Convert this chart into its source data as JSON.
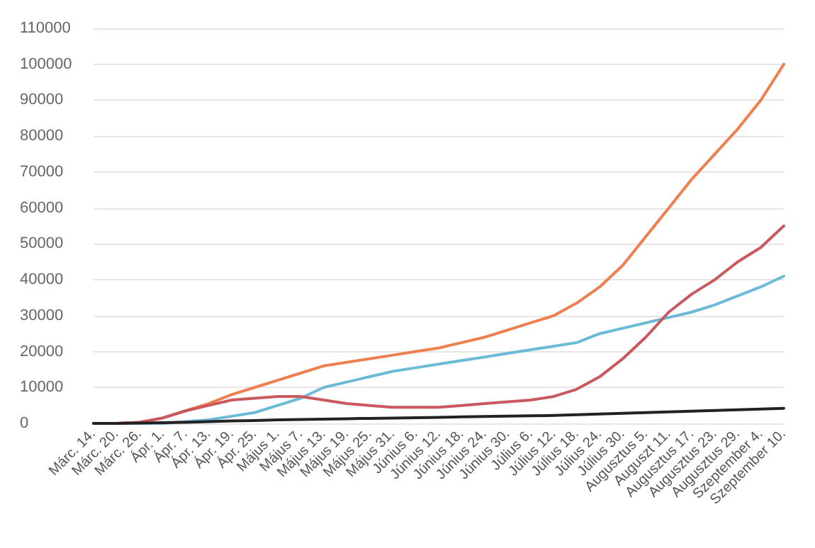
{
  "chart_data": {
    "type": "line",
    "categories": [
      "Márc. 14.",
      "Márc. 20.",
      "Márc. 26.",
      "Ápr. 1.",
      "Ápr. 7.",
      "Ápr. 13.",
      "Ápr. 19.",
      "Ápr. 25.",
      "Május 1.",
      "Május 7.",
      "Május 13.",
      "Május 19.",
      "Május 25.",
      "Május 31.",
      "Június 6.",
      "Június 12.",
      "Június 18.",
      "Június 24.",
      "Június 30.",
      "Július 6.",
      "Július 12.",
      "Július 18.",
      "Július 24.",
      "Július 30.",
      "Augusztus 5.",
      "Auguszt 11.",
      "Augusztus 17.",
      "Augusztus 23.",
      "Augusztus 29.",
      "Szeptember 4.",
      "Szeptember 10."
    ],
    "series": [
      {
        "color": "#ee7f4e",
        "values": [
          0,
          0,
          300,
          1500,
          3500,
          5500,
          8000,
          10000,
          12000,
          14000,
          16000,
          17000,
          18000,
          19000,
          20000,
          21000,
          22500,
          24000,
          26000,
          28000,
          30000,
          33500,
          38000,
          44000,
          52000,
          60000,
          68000,
          75000,
          82000,
          90000,
          100000
        ]
      },
      {
        "color": "#6bbbd6",
        "values": [
          0,
          0,
          0,
          0,
          500,
          1000,
          2000,
          3000,
          5000,
          7000,
          10000,
          11500,
          13000,
          14500,
          15500,
          16500,
          17500,
          18500,
          19500,
          20500,
          21500,
          22500,
          25000,
          26500,
          28000,
          29500,
          31000,
          33000,
          35500,
          38000,
          41000
        ]
      },
      {
        "color": "#c9585f",
        "values": [
          0,
          0,
          300,
          1500,
          3500,
          5000,
          6500,
          7000,
          7500,
          7500,
          6500,
          5500,
          5000,
          4500,
          4500,
          4500,
          5000,
          5500,
          6000,
          6500,
          7500,
          9500,
          13000,
          18000,
          24000,
          31000,
          36000,
          40000,
          45000,
          49000,
          55000
        ]
      },
      {
        "color": "#222222",
        "values": [
          0,
          0,
          100,
          200,
          300,
          500,
          700,
          800,
          1000,
          1100,
          1200,
          1300,
          1400,
          1500,
          1600,
          1700,
          1800,
          1900,
          2000,
          2100,
          2200,
          2400,
          2600,
          2800,
          3000,
          3200,
          3400,
          3600,
          3800,
          4000,
          4200
        ]
      }
    ],
    "ylim": [
      0,
      110000
    ],
    "yticks": [
      0,
      10000,
      20000,
      30000,
      40000,
      50000,
      60000,
      70000,
      80000,
      90000,
      100000,
      110000
    ],
    "grid": "y",
    "marker": "none",
    "line_style": "solid"
  }
}
